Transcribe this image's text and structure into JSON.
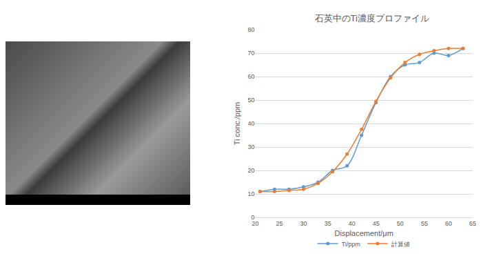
{
  "chart_data": {
    "type": "line",
    "title": "石英中のTi濃度プロファイル",
    "x_label": "Displacement/μm",
    "y_label": "Ti conc./ppm",
    "x": [
      21,
      24,
      27,
      30,
      33,
      36,
      39,
      42,
      45,
      48,
      51,
      54,
      57,
      60,
      63
    ],
    "series": [
      {
        "name": "Ti/ppm",
        "color": "#5b9bd5",
        "marker": "circle",
        "line_style": "smooth",
        "values": [
          11,
          12,
          12,
          13,
          15,
          20,
          22,
          35,
          49,
          60,
          65,
          66,
          70,
          69,
          72
        ]
      },
      {
        "name": "計算値",
        "color": "#ed7d31",
        "marker": "circle",
        "line_style": "smooth",
        "values": [
          11,
          11,
          11.5,
          12,
          14.5,
          19.5,
          27,
          37.5,
          49.5,
          59.5,
          66,
          69.5,
          71,
          72,
          72
        ]
      }
    ],
    "xlim": [
      20,
      65
    ],
    "xticks": [
      20,
      25,
      30,
      35,
      40,
      45,
      50,
      55,
      60,
      65
    ],
    "ylim": [
      0,
      80
    ],
    "yticks": [
      0,
      10,
      20,
      30,
      40,
      50,
      60,
      70,
      80
    ],
    "grid": true,
    "legend": "bottom"
  }
}
